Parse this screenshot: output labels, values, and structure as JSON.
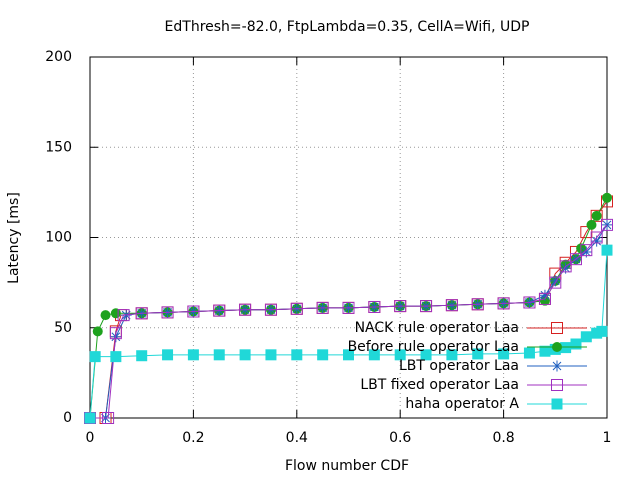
{
  "chart_data": {
    "type": "line",
    "title": "EdThresh=-82.0, FtpLambda=0.35, CellA=Wifi, UDP",
    "x_label": "Flow number CDF",
    "y_label": "Latency [ms]",
    "xlim": [
      0,
      1
    ],
    "xticks": [
      0,
      0.2,
      0.4,
      0.6,
      0.8,
      1
    ],
    "ylim": [
      0,
      200
    ],
    "yticks": [
      0,
      50,
      100,
      150,
      200
    ],
    "grid": true,
    "legend": "bottom-right",
    "series": [
      {
        "name": "NACK rule operator Laa",
        "color": "#d62020",
        "marker": "open-square",
        "x": [
          0,
          0.03,
          0.05,
          0.06,
          0.1,
          0.15,
          0.2,
          0.25,
          0.3,
          0.35,
          0.4,
          0.45,
          0.5,
          0.55,
          0.6,
          0.65,
          0.7,
          0.75,
          0.8,
          0.85,
          0.88,
          0.9,
          0.92,
          0.94,
          0.96,
          0.98,
          1
        ],
        "values": [
          0,
          0,
          48,
          57,
          58,
          58.5,
          59,
          59.5,
          60,
          60,
          60.5,
          61,
          61,
          61.5,
          62,
          62,
          62.5,
          63,
          63.5,
          64,
          66,
          80,
          86,
          92,
          103,
          112,
          120
        ]
      },
      {
        "name": "Before rule operator Laa",
        "color": "#1ea21e",
        "marker": "filled-circle",
        "x": [
          0,
          0.015,
          0.03,
          0.05,
          0.1,
          0.15,
          0.2,
          0.25,
          0.3,
          0.35,
          0.4,
          0.45,
          0.5,
          0.55,
          0.6,
          0.65,
          0.7,
          0.75,
          0.8,
          0.85,
          0.88,
          0.9,
          0.92,
          0.94,
          0.95,
          0.97,
          0.98,
          1
        ],
        "values": [
          0,
          48,
          57,
          58,
          58,
          58.5,
          59,
          59.5,
          60,
          60,
          60.5,
          61,
          61,
          61.5,
          62,
          62,
          62.5,
          63,
          63.5,
          64,
          65,
          76,
          85,
          88,
          94,
          107,
          112,
          122
        ]
      },
      {
        "name": "LBT operator Laa",
        "color": "#2060c0",
        "marker": "asterisk",
        "x": [
          0,
          0.03,
          0.05,
          0.07,
          0.1,
          0.15,
          0.2,
          0.25,
          0.3,
          0.35,
          0.4,
          0.45,
          0.5,
          0.55,
          0.6,
          0.65,
          0.7,
          0.75,
          0.8,
          0.85,
          0.88,
          0.9,
          0.92,
          0.94,
          0.96,
          0.98,
          1
        ],
        "values": [
          0,
          0,
          45,
          57,
          58,
          58.5,
          59,
          59.5,
          60,
          60,
          60.5,
          61,
          61,
          61.5,
          62,
          62,
          62.5,
          63,
          63.5,
          64,
          68,
          76,
          83,
          88,
          92,
          98,
          107
        ]
      },
      {
        "name": "LBT fixed operator Laa",
        "color": "#a030c0",
        "marker": "open-square",
        "x": [
          0,
          0.035,
          0.05,
          0.065,
          0.1,
          0.15,
          0.2,
          0.25,
          0.3,
          0.35,
          0.4,
          0.45,
          0.5,
          0.55,
          0.6,
          0.65,
          0.7,
          0.75,
          0.8,
          0.85,
          0.88,
          0.9,
          0.92,
          0.94,
          0.96,
          0.98,
          1
        ],
        "values": [
          0,
          0,
          47,
          57,
          58,
          58.5,
          59,
          59.5,
          60,
          60,
          60.5,
          61,
          61,
          61.5,
          62,
          62,
          62.5,
          63,
          63.5,
          64,
          66,
          75,
          84,
          88,
          93,
          100,
          107
        ]
      },
      {
        "name": "haha operator A",
        "color": "#20d8d8",
        "marker": "filled-square",
        "x": [
          0,
          0.01,
          0.05,
          0.1,
          0.15,
          0.2,
          0.25,
          0.3,
          0.35,
          0.4,
          0.45,
          0.5,
          0.55,
          0.6,
          0.65,
          0.7,
          0.75,
          0.8,
          0.85,
          0.88,
          0.9,
          0.92,
          0.94,
          0.96,
          0.98,
          0.99,
          1
        ],
        "values": [
          0,
          34,
          34,
          34.5,
          35,
          35,
          35,
          35,
          35,
          35,
          35,
          35,
          35,
          35,
          35,
          35,
          35.5,
          35.5,
          36,
          37,
          38,
          39,
          41,
          45,
          47,
          48,
          93
        ]
      }
    ]
  }
}
